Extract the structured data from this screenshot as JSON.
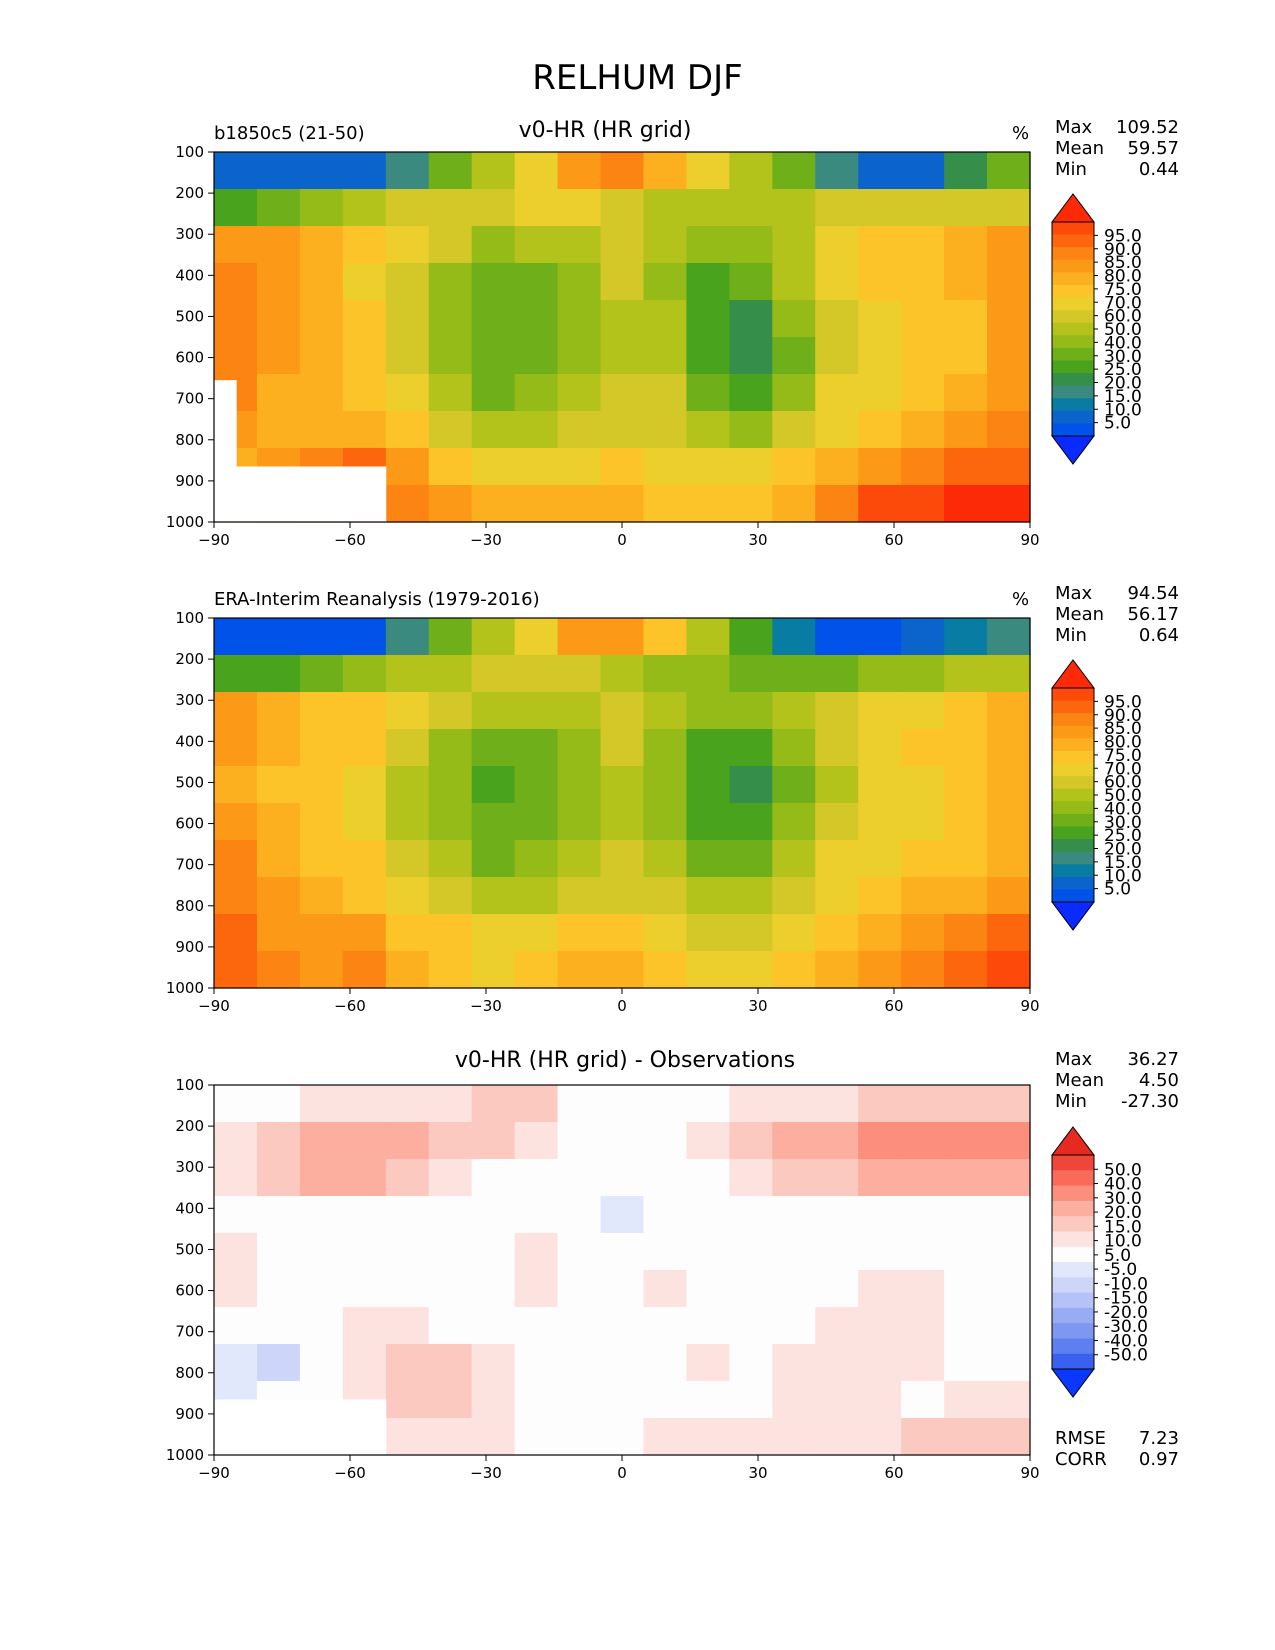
{
  "main_title": "RELHUM DJF",
  "colors": {
    "rh_levels": [
      "#0a2bff",
      "#0052e8",
      "#0a64cc",
      "#087ca2",
      "#3a8a80",
      "#358f4a",
      "#49a31c",
      "#6fb01a",
      "#94bb18",
      "#b4c21c",
      "#d4c828",
      "#ecce2c",
      "#fcc428",
      "#fcb020",
      "#fc9a18",
      "#fc8412",
      "#fc660c",
      "#fc4a0a",
      "#fc2a06"
    ],
    "diff_levels": [
      "#0a38ff",
      "#3a60f0",
      "#5c80f0",
      "#7e98f2",
      "#98acf4",
      "#b4c2f7",
      "#cdd6f9",
      "#e2e8fc",
      "#fdfdfd",
      "#fde3e0",
      "#fcc9c1",
      "#fcae9f",
      "#fb8e7c",
      "#f96b58",
      "#f0463a",
      "#e62a22"
    ]
  },
  "panels": {
    "model": {
      "left_label": "b1850c5 (21-50)",
      "center_title": "v0-HR (HR grid)",
      "units": "%",
      "stats": {
        "max_label": "Max",
        "max": "109.52",
        "mean_label": "Mean",
        "mean": "59.57",
        "min_label": "Min",
        "min": "0.44"
      }
    },
    "obs": {
      "left_label": "ERA-Interim Reanalysis (1979-2016)",
      "units": "%",
      "stats": {
        "max_label": "Max",
        "max": "94.54",
        "mean_label": "Mean",
        "mean": "56.17",
        "min_label": "Min",
        "min": "0.64"
      }
    },
    "diff": {
      "center_title": "v0-HR (HR grid) - Observations",
      "stats": {
        "max_label": "Max",
        "max": "36.27",
        "mean_label": "Mean",
        "mean": "4.50",
        "min_label": "Min",
        "min": "-27.30"
      },
      "extra": {
        "rmse_label": "RMSE",
        "rmse": "7.23",
        "corr_label": "CORR",
        "corr": "0.97"
      }
    }
  },
  "chart_data": [
    {
      "type": "heatmap",
      "title": "v0-HR (HR grid)",
      "subtitle": "b1850c5 (21-50)",
      "units": "%",
      "x_ticks": [
        "−90",
        "−60",
        "−30",
        "0",
        "30",
        "60",
        "90"
      ],
      "y_ticks": [
        "100",
        "200",
        "300",
        "400",
        "500",
        "600",
        "700",
        "800",
        "900",
        "1000"
      ],
      "xlim": [
        -90,
        90
      ],
      "ylim": [
        1000,
        100
      ],
      "colorbar_ticks": [
        "95.0",
        "90.0",
        "85.0",
        "80.0",
        "75.0",
        "70.0",
        "60.0",
        "50.0",
        "40.0",
        "30.0",
        "25.0",
        "20.0",
        "15.0",
        "10.0",
        "5.0"
      ],
      "field": [
        [
          2,
          2,
          2,
          2,
          4,
          7,
          9,
          11,
          14,
          15,
          13,
          11,
          9,
          7,
          4,
          2,
          2,
          5,
          7
        ],
        [
          6,
          7,
          8,
          9,
          10,
          10,
          10,
          11,
          11,
          10,
          9,
          9,
          9,
          9,
          10,
          10,
          10,
          10,
          10
        ],
        [
          14,
          14,
          13,
          12,
          11,
          10,
          8,
          9,
          9,
          10,
          9,
          8,
          8,
          9,
          11,
          12,
          12,
          13,
          14
        ],
        [
          15,
          14,
          13,
          11,
          10,
          8,
          7,
          7,
          8,
          10,
          8,
          6,
          7,
          9,
          11,
          12,
          12,
          13,
          14
        ],
        [
          15,
          14,
          13,
          12,
          10,
          8,
          7,
          7,
          8,
          9,
          9,
          6,
          5,
          8,
          10,
          11,
          12,
          12,
          14
        ],
        [
          15,
          14,
          13,
          12,
          10,
          8,
          7,
          7,
          8,
          9,
          9,
          6,
          5,
          7,
          10,
          11,
          12,
          12,
          14
        ],
        [
          15,
          13,
          13,
          12,
          11,
          9,
          7,
          8,
          9,
          10,
          10,
          7,
          6,
          8,
          11,
          11,
          12,
          13,
          14
        ],
        [
          14,
          13,
          13,
          13,
          12,
          10,
          9,
          9,
          10,
          10,
          10,
          9,
          8,
          10,
          11,
          12,
          13,
          14,
          15
        ],
        [
          13,
          14,
          15,
          16,
          14,
          12,
          11,
          11,
          11,
          12,
          11,
          11,
          11,
          12,
          13,
          14,
          15,
          16,
          16
        ],
        [
          13,
          14,
          15,
          16,
          15,
          14,
          13,
          13,
          13,
          13,
          12,
          12,
          12,
          13,
          15,
          17,
          17,
          18,
          18
        ]
      ],
      "missing": [
        {
          "lon_from": -90,
          "lon_to": -52,
          "p_from": 865,
          "p_to": 1000
        },
        {
          "lon_from": -90,
          "lon_to": -85,
          "p_from": 655,
          "p_to": 865
        }
      ]
    },
    {
      "type": "heatmap",
      "title": "",
      "subtitle": "ERA-Interim Reanalysis (1979-2016)",
      "units": "%",
      "x_ticks": [
        "−90",
        "−60",
        "−30",
        "0",
        "30",
        "60",
        "90"
      ],
      "y_ticks": [
        "100",
        "200",
        "300",
        "400",
        "500",
        "600",
        "700",
        "800",
        "900",
        "1000"
      ],
      "xlim": [
        -90,
        90
      ],
      "ylim": [
        1000,
        100
      ],
      "colorbar_ticks": [
        "95.0",
        "90.0",
        "85.0",
        "80.0",
        "75.0",
        "70.0",
        "60.0",
        "50.0",
        "40.0",
        "30.0",
        "25.0",
        "20.0",
        "15.0",
        "10.0",
        "5.0"
      ],
      "field": [
        [
          1,
          1,
          1,
          1,
          4,
          7,
          9,
          11,
          14,
          14,
          12,
          9,
          6,
          3,
          1,
          1,
          2,
          3,
          4
        ],
        [
          6,
          6,
          7,
          8,
          9,
          9,
          10,
          10,
          10,
          9,
          8,
          8,
          7,
          7,
          7,
          8,
          8,
          9,
          9
        ],
        [
          14,
          13,
          12,
          12,
          11,
          10,
          9,
          9,
          9,
          10,
          9,
          8,
          8,
          9,
          10,
          11,
          11,
          12,
          13
        ],
        [
          14,
          13,
          12,
          12,
          10,
          8,
          7,
          7,
          8,
          10,
          8,
          6,
          6,
          8,
          10,
          11,
          12,
          12,
          13
        ],
        [
          13,
          12,
          12,
          11,
          9,
          8,
          6,
          7,
          8,
          9,
          8,
          6,
          5,
          7,
          9,
          11,
          11,
          12,
          13
        ],
        [
          14,
          13,
          12,
          11,
          9,
          8,
          7,
          7,
          8,
          9,
          8,
          6,
          6,
          8,
          10,
          11,
          11,
          12,
          13
        ],
        [
          15,
          13,
          12,
          12,
          10,
          9,
          7,
          8,
          9,
          10,
          9,
          7,
          7,
          9,
          11,
          11,
          12,
          12,
          13
        ],
        [
          15,
          14,
          13,
          12,
          11,
          10,
          9,
          9,
          10,
          10,
          10,
          9,
          9,
          10,
          11,
          12,
          13,
          13,
          14
        ],
        [
          16,
          14,
          14,
          14,
          12,
          12,
          11,
          11,
          12,
          12,
          11,
          10,
          10,
          11,
          12,
          13,
          14,
          15,
          16
        ],
        [
          16,
          15,
          14,
          15,
          13,
          12,
          11,
          12,
          13,
          13,
          12,
          11,
          11,
          12,
          13,
          14,
          15,
          16,
          17
        ]
      ],
      "missing": []
    },
    {
      "type": "heatmap",
      "title": "v0-HR (HR grid) - Observations",
      "x_ticks": [
        "−90",
        "−60",
        "−30",
        "0",
        "30",
        "60",
        "90"
      ],
      "y_ticks": [
        "100",
        "200",
        "300",
        "400",
        "500",
        "600",
        "700",
        "800",
        "900",
        "1000"
      ],
      "xlim": [
        -90,
        90
      ],
      "ylim": [
        1000,
        100
      ],
      "colorbar_ticks": [
        "50.0",
        "40.0",
        "30.0",
        "20.0",
        "15.0",
        "10.0",
        "5.0",
        "-5.0",
        "-10.0",
        "-15.0",
        "-20.0",
        "-30.0",
        "-40.0",
        "-50.0"
      ],
      "field": [
        [
          8,
          8,
          9,
          9,
          9,
          9,
          10,
          10,
          8,
          8,
          8,
          8,
          9,
          9,
          9,
          10,
          10,
          10,
          10
        ],
        [
          9,
          10,
          11,
          11,
          11,
          10,
          10,
          9,
          8,
          8,
          8,
          9,
          10,
          11,
          11,
          12,
          12,
          12,
          12
        ],
        [
          9,
          10,
          11,
          11,
          10,
          9,
          8,
          8,
          8,
          8,
          8,
          8,
          9,
          10,
          10,
          11,
          11,
          11,
          11
        ],
        [
          8,
          8,
          8,
          8,
          8,
          8,
          8,
          8,
          8,
          7,
          8,
          8,
          8,
          8,
          8,
          8,
          8,
          8,
          8
        ],
        [
          9,
          8,
          8,
          8,
          8,
          8,
          8,
          9,
          8,
          8,
          8,
          8,
          8,
          8,
          8,
          8,
          8,
          8,
          8
        ],
        [
          9,
          8,
          8,
          8,
          8,
          8,
          8,
          9,
          8,
          8,
          9,
          8,
          8,
          8,
          8,
          9,
          9,
          8,
          8
        ],
        [
          8,
          8,
          8,
          9,
          9,
          8,
          8,
          8,
          8,
          8,
          8,
          8,
          8,
          8,
          9,
          9,
          9,
          8,
          8
        ],
        [
          7,
          6,
          8,
          9,
          10,
          10,
          9,
          8,
          8,
          8,
          8,
          9,
          8,
          9,
          9,
          9,
          9,
          8,
          8
        ],
        [
          7,
          8,
          8,
          9,
          10,
          10,
          9,
          8,
          8,
          8,
          8,
          8,
          8,
          9,
          9,
          9,
          8,
          9,
          9
        ],
        [
          8,
          8,
          8,
          9,
          9,
          9,
          9,
          8,
          8,
          8,
          9,
          9,
          9,
          9,
          9,
          9,
          10,
          10,
          10
        ]
      ],
      "missing": [
        {
          "lon_from": -90,
          "lon_to": -52,
          "p_from": 865,
          "p_to": 1000
        }
      ],
      "stats_extra": {
        "RMSE": 7.23,
        "CORR": 0.97
      }
    }
  ]
}
